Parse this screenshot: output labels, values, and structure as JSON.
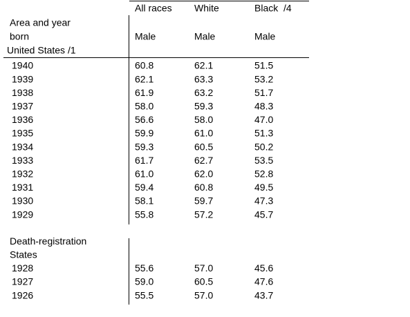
{
  "table": {
    "column_headers": [
      "All races",
      "White",
      "Black  /4"
    ],
    "stub_header": [
      "Area and year",
      "born",
      "United States /1"
    ],
    "sub_headers": [
      "Male",
      "Male",
      "Male"
    ],
    "sections": [
      {
        "rows": [
          [
            "1940",
            "60.8",
            "62.1",
            "51.5"
          ],
          [
            "1939",
            "62.1",
            "63.3",
            "53.2"
          ],
          [
            "1938",
            "61.9",
            "63.2",
            "51.7"
          ],
          [
            "1937",
            "58.0",
            "59.3",
            "48.3"
          ],
          [
            "1936",
            "56.6",
            "58.0",
            "47.0"
          ],
          [
            "1935",
            "59.9",
            "61.0",
            "51.3"
          ],
          [
            "1934",
            "59.3",
            "60.5",
            "50.2"
          ],
          [
            "1933",
            "61.7",
            "62.7",
            "53.5"
          ],
          [
            "1932",
            "61.0",
            "62.0",
            "52.8"
          ],
          [
            "1931",
            "59.4",
            "60.8",
            "49.5"
          ],
          [
            "1930",
            "58.1",
            "59.7",
            "47.3"
          ],
          [
            "1929",
            "55.8",
            "57.2",
            "45.7"
          ]
        ]
      },
      {
        "label": [
          "Death-registration",
          "States"
        ],
        "rows": [
          [
            "1928",
            "55.6",
            "57.0",
            "45.6"
          ],
          [
            "1927",
            "59.0",
            "60.5",
            "47.6"
          ],
          [
            "1926",
            "55.5",
            "57.0",
            "43.7"
          ]
        ]
      }
    ]
  }
}
